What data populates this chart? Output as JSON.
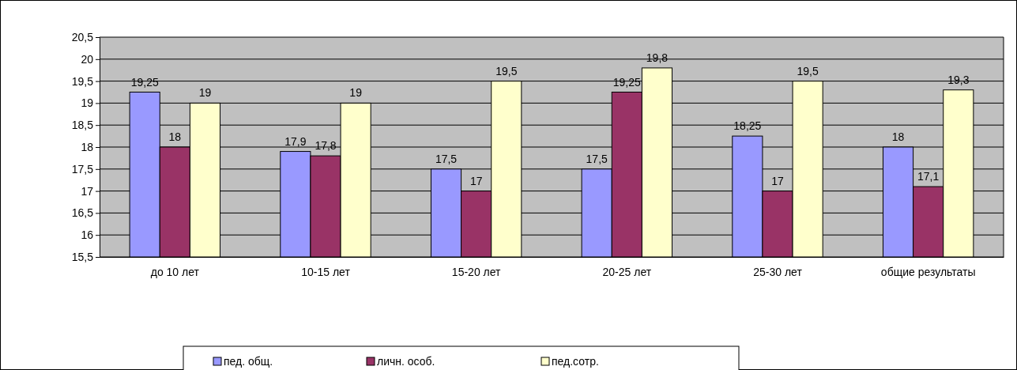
{
  "chart_data": {
    "type": "bar",
    "categories": [
      "до 10 лет",
      "10-15 лет",
      "15-20 лет",
      "20-25 лет",
      "25-30 лет",
      "общие результаты"
    ],
    "series": [
      {
        "name": "пед. общ.",
        "color": "#9999ff",
        "values": [
          19.25,
          17.9,
          17.5,
          17.5,
          18.25,
          18
        ],
        "value_labels": [
          "19,25",
          "17,9",
          "17,5",
          "17,5",
          "18,25",
          "18"
        ]
      },
      {
        "name": "личн. особ.",
        "color": "#993366",
        "values": [
          18,
          17.8,
          17,
          19.25,
          17,
          17.1
        ],
        "value_labels": [
          "18",
          "17,8",
          "17",
          "19,25",
          "17",
          "17,1"
        ]
      },
      {
        "name": "пед.сотр.",
        "color": "#ffffcc",
        "values": [
          19,
          19,
          19.5,
          19.8,
          19.5,
          19.3
        ],
        "value_labels": [
          "19",
          "19",
          "19,5",
          "19,8",
          "19,5",
          "19,3"
        ]
      }
    ],
    "ylim": [
      15.5,
      20.5
    ],
    "yticks": [
      {
        "value": 15.5,
        "label": "15,5"
      },
      16,
      {
        "value": 16.5,
        "label": "16,5"
      },
      17,
      {
        "value": 17.5,
        "label": "17,5"
      },
      18,
      {
        "value": 18.5,
        "label": "18,5"
      },
      19,
      {
        "value": 19.5,
        "label": "19,5"
      },
      20,
      {
        "value": 20.5,
        "label": "20,5"
      }
    ],
    "grid": "y",
    "legend": "bottom"
  }
}
